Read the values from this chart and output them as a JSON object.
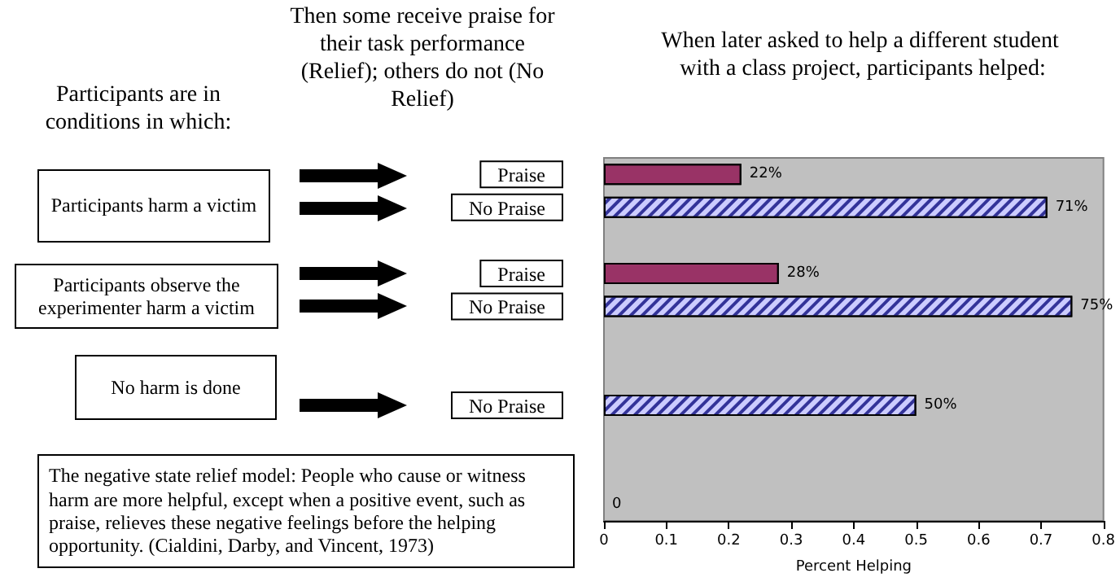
{
  "chart_data": {
    "type": "bar",
    "orientation": "horizontal",
    "title": "When later asked to help a different student with a class project, participants helped:",
    "xlabel": "Percent Helping",
    "categories": [
      "Praise",
      "No Praise",
      null,
      "Praise",
      "No Praise",
      null,
      null,
      "No Praise",
      null,
      null,
      null
    ],
    "values": [
      0.22,
      0.71,
      null,
      0.28,
      0.75,
      null,
      null,
      0.5,
      null,
      null,
      0
    ],
    "colors": [
      "#993366",
      "#ccccff",
      "#ccccff",
      "#993366",
      "#ccccff",
      "#ccccff",
      "#ccccff",
      "#ccccff",
      "#ccccff",
      "#ccccff",
      "#ccccff"
    ],
    "value_labels": [
      "22%",
      "71%",
      null,
      "28%",
      "75%",
      null,
      null,
      "50%",
      null,
      null,
      "0"
    ],
    "xlim": [
      0,
      0.8
    ],
    "xticks": [
      0,
      0.1,
      0.2,
      0.3,
      0.4,
      0.5,
      0.6,
      0.7,
      0.8
    ],
    "annotations": [
      "Participants are in conditions in which:",
      "Then some receive praise for their task performance (Relief); others do not (No Relief)",
      "Participants harm a victim",
      "Participants observe the experimenter harm a victim",
      "No harm is done",
      "The negative state relief model: People who cause or witness harm are more helpful, except when a positive event, such as praise, relieves these negative feelings before the helping opportunity. (Cialdini, Darby, and Vincent, 1973)"
    ]
  }
}
